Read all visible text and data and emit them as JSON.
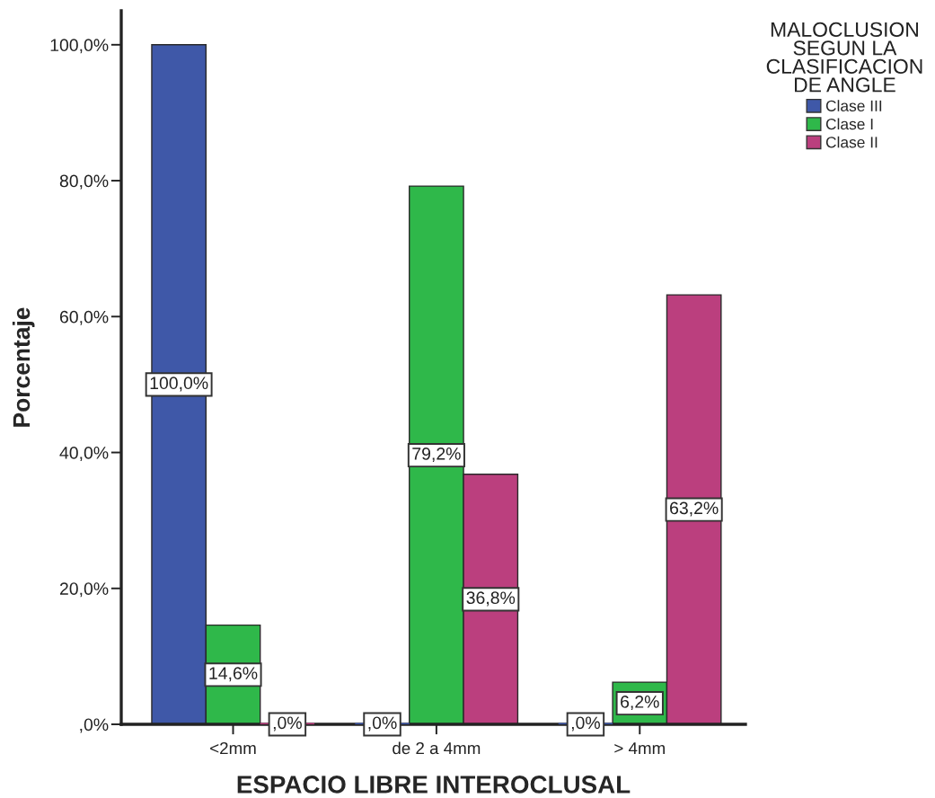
{
  "chart_data": {
    "type": "bar",
    "xlabel": "ESPACIO LIBRE INTEROCLUSAL",
    "ylabel": "Porcentaje",
    "legend_title": "MALOCLUSION\nSEGUN LA\nCLASIFICACION\nDE ANGLE",
    "categories": [
      "<2mm",
      "de 2 a 4mm",
      "> 4mm"
    ],
    "series": [
      {
        "name": "Clase III",
        "color": "#3f58a8",
        "values": [
          100.0,
          0.0,
          0.0
        ],
        "value_labels": [
          "100,0%",
          ",0%",
          ",0%"
        ]
      },
      {
        "name": "Clase I",
        "color": "#2fb84a",
        "values": [
          14.6,
          79.2,
          6.2
        ],
        "value_labels": [
          "14,6%",
          "79,2%",
          "6,2%"
        ]
      },
      {
        "name": "Clase II",
        "color": "#bb3f7e",
        "values": [
          0.0,
          36.8,
          63.2
        ],
        "value_labels": [
          ",0%",
          "36,8%",
          "63,2%"
        ]
      }
    ],
    "ylim": [
      0,
      105
    ],
    "yticks": [
      {
        "value": 0,
        "label": ",0%"
      },
      {
        "value": 20,
        "label": "20,0%"
      },
      {
        "value": 40,
        "label": "40,0%"
      },
      {
        "value": 60,
        "label": "60,0%"
      },
      {
        "value": 80,
        "label": "80,0%"
      },
      {
        "value": 100,
        "label": "100,0%"
      }
    ],
    "grid": false,
    "legend": "top right"
  }
}
